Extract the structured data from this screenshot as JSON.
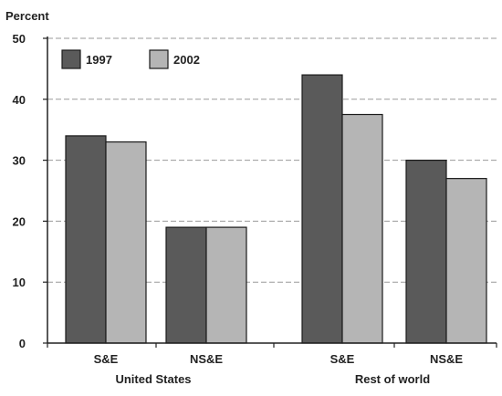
{
  "chart_data": {
    "type": "bar",
    "title": "",
    "ylabel": "Percent",
    "xlabel": "",
    "ylim": [
      0,
      50
    ],
    "yticks": [
      0,
      10,
      20,
      30,
      40,
      50
    ],
    "grid": true,
    "legend_position": "top-left",
    "groups": [
      {
        "label": "United States",
        "categories": [
          "S&E",
          "NS&E"
        ]
      },
      {
        "label": "Rest of world",
        "categories": [
          "S&E",
          "NS&E"
        ]
      }
    ],
    "categories": [
      "S&E",
      "NS&E",
      "S&E",
      "NS&E"
    ],
    "series": [
      {
        "name": "1997",
        "values": [
          34,
          19,
          44,
          30
        ],
        "color": "#5a5a5a"
      },
      {
        "name": "2002",
        "values": [
          33,
          19,
          37.5,
          27
        ],
        "color": "#b5b5b5"
      }
    ]
  }
}
